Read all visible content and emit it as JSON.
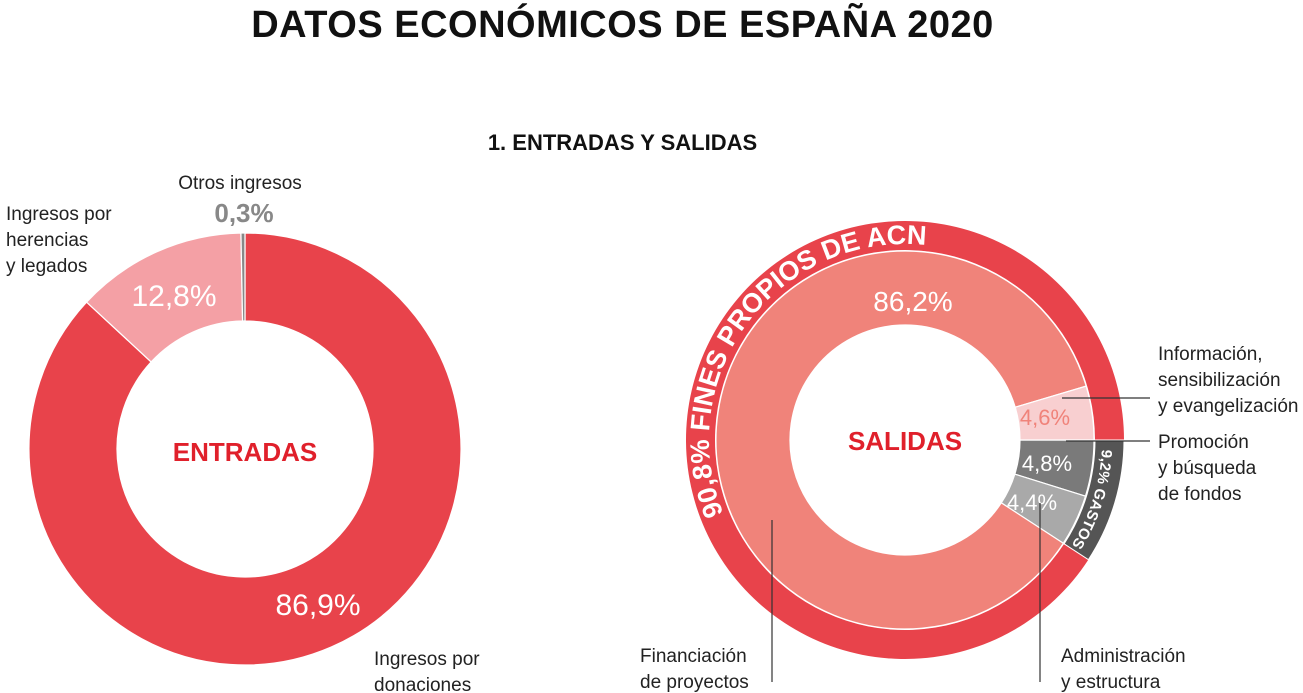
{
  "title": "DATOS ECONÓMICOS DE ESPAÑA 2020",
  "subtitle": "1. ENTRADAS Y SALIDAS",
  "chart_data": [
    {
      "type": "pie",
      "center_label": "ENTRADAS",
      "slices": [
        {
          "label": [
            "Ingresos por",
            "donaciones"
          ],
          "value": 86.9,
          "value_label": "86,9%",
          "color": "#e8434b"
        },
        {
          "label": [
            "Ingresos por",
            "herencias",
            "y legados"
          ],
          "value": 12.8,
          "value_label": "12,8%",
          "color": "#f4a0a5"
        },
        {
          "label": [
            "Otros ingresos"
          ],
          "value": 0.3,
          "value_label": "0,3%",
          "color": "#888888"
        }
      ]
    },
    {
      "type": "pie",
      "center_label": "SALIDAS",
      "outer_ring": [
        {
          "label": "FINES PROPIOS DE ACN",
          "value": 90.8,
          "value_label": "90,8%",
          "color": "#e8434b"
        },
        {
          "label": "GASTOS",
          "value": 9.2,
          "value_label": "9,2%",
          "color": "#555555"
        }
      ],
      "slices": [
        {
          "label": [
            "Promoción",
            "y búsqueda",
            "de fondos"
          ],
          "value": 4.8,
          "value_label": "4,8%",
          "color": "#7a7a7a"
        },
        {
          "label": [
            "Administración",
            "y estructura"
          ],
          "value": 4.4,
          "value_label": "4,4%",
          "color": "#a9a9a9"
        },
        {
          "label": [
            "Financiación",
            "de proyectos"
          ],
          "value": 86.2,
          "value_label": "86,2%",
          "color": "#f0837a"
        },
        {
          "label": [
            "Información,",
            "sensibilización",
            "y evangelización"
          ],
          "value": 4.6,
          "value_label": "4,6%",
          "color": "#f8cfd0"
        }
      ]
    }
  ]
}
